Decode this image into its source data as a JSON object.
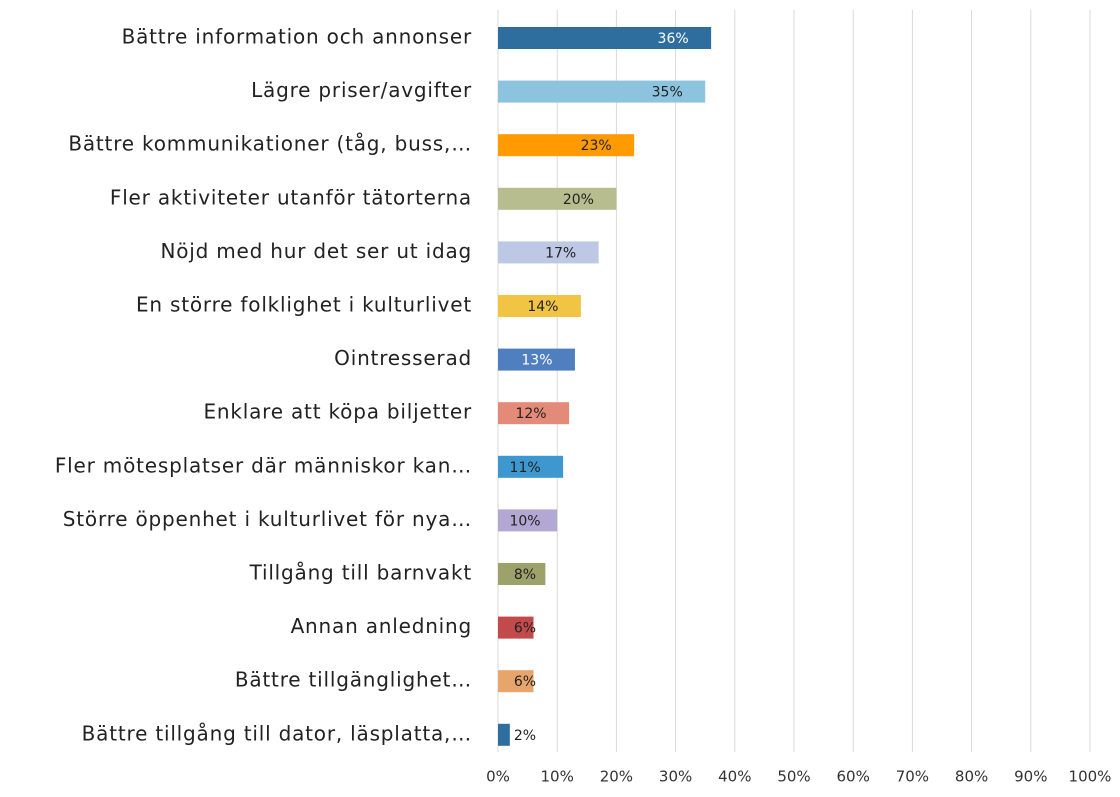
{
  "chart_data": {
    "type": "hbar",
    "categories": [
      "Bättre information och annonser",
      "Lägre priser/avgifter",
      "Bättre kommunikationer (tåg, buss,…",
      "Fler aktiviteter utanför tätorterna",
      "Nöjd med hur det ser ut idag",
      "En större folklighet i kulturlivet",
      "Ointresserad",
      "Enklare att köpa biljetter",
      "Fler mötesplatser där människor kan…",
      "Större öppenhet i kulturlivet för nya…",
      "Tillgång till barnvakt",
      "Annan anledning",
      "Bättre tillgänglighet…",
      "Bättre tillgång till dator, läsplatta,…"
    ],
    "values": [
      36,
      35,
      23,
      20,
      17,
      14,
      13,
      12,
      11,
      10,
      8,
      6,
      6,
      2
    ],
    "value_labels": [
      "36%",
      "35%",
      "23%",
      "20%",
      "17%",
      "14%",
      "13%",
      "12%",
      "11%",
      "10%",
      "8%",
      "6%",
      "6%",
      "2%"
    ],
    "colors": [
      "#2e6e9e",
      "#8cc4e0",
      "#ff9b00",
      "#b8bd8f",
      "#bcc8e4",
      "#f2c444",
      "#4f7fbf",
      "#e38a78",
      "#3d98d0",
      "#b3a8d4",
      "#9da26b",
      "#c34a4a",
      "#e8a56b",
      "#2e6e9e"
    ],
    "xlim": [
      0,
      100
    ],
    "xticks": [
      {
        "value": 0,
        "label": "0%"
      },
      {
        "value": 10,
        "label": "10%"
      },
      {
        "value": 20,
        "label": "20%"
      },
      {
        "value": 30,
        "label": "30%"
      },
      {
        "value": 40,
        "label": "40%"
      },
      {
        "value": 50,
        "label": "50%"
      },
      {
        "value": 60,
        "label": "60%"
      },
      {
        "value": 70,
        "label": "70%"
      },
      {
        "value": 80,
        "label": "80%"
      },
      {
        "value": 90,
        "label": "90%"
      },
      {
        "value": 100,
        "label": "100%"
      }
    ],
    "grid": true
  }
}
